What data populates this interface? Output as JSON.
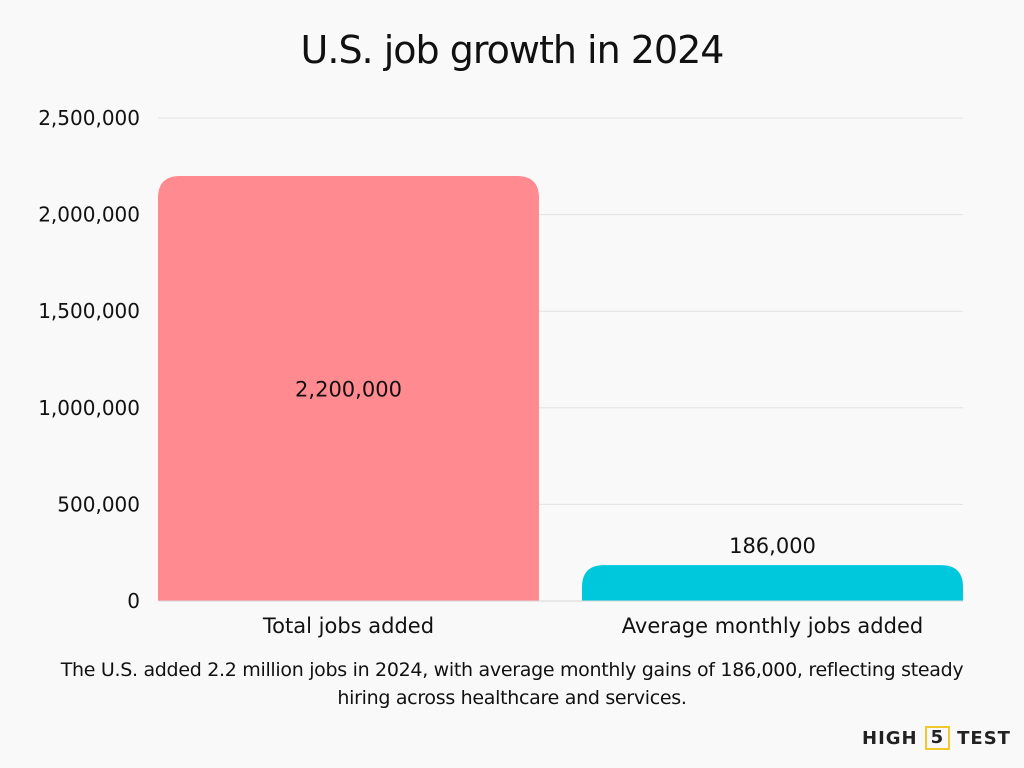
{
  "chart_data": {
    "type": "bar",
    "title": "U.S. job growth in 2024",
    "categories": [
      "Total jobs added",
      "Average monthly jobs added"
    ],
    "values": [
      2200000,
      186000
    ],
    "data_labels": [
      "2,200,000",
      "186,000"
    ],
    "colors": [
      "#ff8a8f",
      "#00c8dc"
    ],
    "ylim": [
      0,
      2500000
    ],
    "yticks": [
      0,
      500000,
      1000000,
      1500000,
      2000000,
      2500000
    ],
    "ytick_labels": [
      "0",
      "500,000",
      "1,000,000",
      "1,500,000",
      "2,000,000",
      "2,500,000"
    ],
    "grid": true,
    "xlabel": "",
    "ylabel": ""
  },
  "caption": "The U.S. added 2.2 million jobs in 2024, with average monthly gains of 186,000, reflecting steady hiring across healthcare and services.",
  "logo": {
    "left": "HIGH",
    "middle": "5",
    "right": "TEST"
  }
}
